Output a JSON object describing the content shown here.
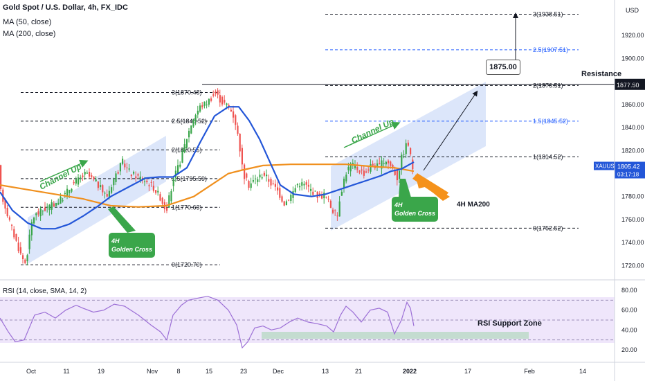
{
  "header": {
    "ticker": "Gold Spot / U.S. Dollar, 4h, FX_IDC",
    "ma50": "MA (50, close)",
    "ma200": "MA (200, close)",
    "currency": "USD"
  },
  "rsi": {
    "title": "RSI (14, close, SMA, 14, 2)",
    "zone_label": "RSI Support Zone",
    "yticks": [
      "80.00",
      "60.00",
      "40.00",
      "20.00"
    ],
    "levels": [
      70,
      50,
      30
    ]
  },
  "annotations": {
    "target_box": "1875.00",
    "resistance": "Resistance",
    "resistance_value": "1877.50",
    "golden_cross": "4H\nGolden Cross",
    "channel_up": "Channel Up",
    "ma200_label": "4H MA200",
    "price_tag": "XAUUSD",
    "price_value": "1805.42",
    "countdown": "03:17:18"
  },
  "colors": {
    "ma50": "#2356d8",
    "ma200": "#f0901e",
    "bull": "#3aa64a",
    "bear": "#ef5350",
    "channel": "#c9d9f7",
    "fib": "#131722",
    "fib_blue": "#2962ff",
    "rsi_line": "#9c6fd6",
    "rsi_band": "#efe6fb",
    "badge": "#3aa64a",
    "arrow": "#f5921b",
    "resistance": "#131722"
  },
  "chart_data": {
    "type": "candlestick",
    "x_tick_labels": [
      "Oct",
      "11",
      "19",
      "Nov",
      "8",
      "15",
      "23",
      "Dec",
      "13",
      "21",
      "2022",
      "17",
      "Feb",
      "14"
    ],
    "y_ticks": [
      "1920.00",
      "1900.00",
      "1880.00",
      "1860.00",
      "1840.00",
      "1820.00",
      "1800.00",
      "1780.00",
      "1760.00",
      "1740.00",
      "1720.00"
    ],
    "y_range": [
      1710,
      1946
    ],
    "fib_left": [
      {
        "label": "3(1870.48)",
        "value": 1870.48
      },
      {
        "label": "2.5(1845.52)",
        "value": 1845.52
      },
      {
        "label": "2(1820.55)",
        "value": 1820.55
      },
      {
        "label": "1.5(1795.59)",
        "value": 1795.59
      },
      {
        "label": "1(1770.63)",
        "value": 1770.63
      },
      {
        "label": "0(1720.70)",
        "value": 1720.7
      }
    ],
    "fib_right": [
      {
        "label": "3(1938.51)",
        "value": 1938.51
      },
      {
        "label": "2.5(1907.51)",
        "value": 1907.51
      },
      {
        "label": "2(1876.51)",
        "value": 1876.51
      },
      {
        "label": "1.5(1845.52)",
        "value": 1845.52
      },
      {
        "label": "1(1814.52)",
        "value": 1814.52
      },
      {
        "label": "0(1752.52)",
        "value": 1752.52
      }
    ],
    "resistance": 1877.5,
    "target": 1875.0,
    "last_price": 1805.42,
    "price_anchors": [
      [
        0,
        1788
      ],
      [
        14,
        1760
      ],
      [
        22,
        1745
      ],
      [
        32,
        1728
      ],
      [
        38,
        1722
      ],
      [
        48,
        1762
      ],
      [
        62,
        1768
      ],
      [
        75,
        1772
      ],
      [
        90,
        1778
      ],
      [
        105,
        1790
      ],
      [
        115,
        1795
      ],
      [
        125,
        1800
      ],
      [
        140,
        1792
      ],
      [
        155,
        1780
      ],
      [
        165,
        1795
      ],
      [
        178,
        1810
      ],
      [
        190,
        1800
      ],
      [
        205,
        1796
      ],
      [
        220,
        1790
      ],
      [
        232,
        1780
      ],
      [
        241,
        1768
      ],
      [
        252,
        1795
      ],
      [
        262,
        1812
      ],
      [
        270,
        1830
      ],
      [
        280,
        1848
      ],
      [
        290,
        1858
      ],
      [
        300,
        1862
      ],
      [
        312,
        1870
      ],
      [
        322,
        1862
      ],
      [
        332,
        1858
      ],
      [
        340,
        1848
      ],
      [
        347,
        1825
      ],
      [
        352,
        1800
      ],
      [
        360,
        1790
      ],
      [
        370,
        1795
      ],
      [
        382,
        1800
      ],
      [
        392,
        1792
      ],
      [
        402,
        1785
      ],
      [
        412,
        1774
      ],
      [
        422,
        1782
      ],
      [
        432,
        1792
      ],
      [
        442,
        1790
      ],
      [
        452,
        1785
      ],
      [
        462,
        1780
      ],
      [
        470,
        1782
      ],
      [
        480,
        1770
      ],
      [
        488,
        1762
      ],
      [
        492,
        1780
      ],
      [
        500,
        1800
      ],
      [
        508,
        1808
      ],
      [
        518,
        1804
      ],
      [
        528,
        1800
      ],
      [
        538,
        1808
      ],
      [
        548,
        1806
      ],
      [
        558,
        1812
      ],
      [
        568,
        1805
      ],
      [
        575,
        1796
      ],
      [
        582,
        1816
      ],
      [
        590,
        1828
      ],
      [
        597,
        1805
      ]
    ],
    "ma50_anchors": [
      [
        0,
        1784
      ],
      [
        18,
        1768
      ],
      [
        40,
        1757
      ],
      [
        60,
        1752
      ],
      [
        80,
        1752
      ],
      [
        100,
        1756
      ],
      [
        120,
        1763
      ],
      [
        140,
        1771
      ],
      [
        160,
        1780
      ],
      [
        185,
        1788
      ],
      [
        210,
        1796
      ],
      [
        230,
        1797
      ],
      [
        250,
        1797
      ],
      [
        270,
        1805
      ],
      [
        290,
        1828
      ],
      [
        310,
        1850
      ],
      [
        330,
        1858
      ],
      [
        345,
        1858
      ],
      [
        360,
        1846
      ],
      [
        375,
        1830
      ],
      [
        390,
        1810
      ],
      [
        405,
        1790
      ],
      [
        425,
        1782
      ],
      [
        450,
        1780
      ],
      [
        470,
        1782
      ],
      [
        490,
        1786
      ],
      [
        510,
        1790
      ],
      [
        530,
        1794
      ],
      [
        550,
        1798
      ],
      [
        565,
        1802
      ],
      [
        580,
        1804
      ],
      [
        598,
        1810
      ]
    ],
    "ma200_anchors": [
      [
        0,
        1790
      ],
      [
        40,
        1786
      ],
      [
        80,
        1782
      ],
      [
        120,
        1778
      ],
      [
        160,
        1772
      ],
      [
        200,
        1771
      ],
      [
        240,
        1772
      ],
      [
        280,
        1780
      ],
      [
        310,
        1792
      ],
      [
        330,
        1800
      ],
      [
        350,
        1803
      ],
      [
        380,
        1807
      ],
      [
        420,
        1808
      ],
      [
        460,
        1808
      ],
      [
        500,
        1808
      ],
      [
        540,
        1806
      ],
      [
        570,
        1805
      ],
      [
        598,
        1802
      ]
    ],
    "rsi_anchors": [
      [
        0,
        52
      ],
      [
        12,
        38
      ],
      [
        22,
        28
      ],
      [
        35,
        30
      ],
      [
        50,
        55
      ],
      [
        65,
        58
      ],
      [
        80,
        52
      ],
      [
        95,
        60
      ],
      [
        110,
        65
      ],
      [
        120,
        62
      ],
      [
        135,
        58
      ],
      [
        150,
        60
      ],
      [
        165,
        66
      ],
      [
        180,
        64
      ],
      [
        200,
        55
      ],
      [
        218,
        45
      ],
      [
        232,
        38
      ],
      [
        241,
        30
      ],
      [
        250,
        55
      ],
      [
        262,
        65
      ],
      [
        272,
        70
      ],
      [
        285,
        72
      ],
      [
        300,
        74
      ],
      [
        315,
        70
      ],
      [
        330,
        60
      ],
      [
        342,
        45
      ],
      [
        350,
        22
      ],
      [
        358,
        28
      ],
      [
        368,
        42
      ],
      [
        380,
        44
      ],
      [
        392,
        40
      ],
      [
        405,
        42
      ],
      [
        418,
        48
      ],
      [
        430,
        52
      ],
      [
        445,
        48
      ],
      [
        460,
        46
      ],
      [
        472,
        44
      ],
      [
        482,
        38
      ],
      [
        492,
        55
      ],
      [
        500,
        64
      ],
      [
        510,
        58
      ],
      [
        522,
        48
      ],
      [
        535,
        60
      ],
      [
        548,
        62
      ],
      [
        560,
        58
      ],
      [
        570,
        36
      ],
      [
        580,
        50
      ],
      [
        588,
        68
      ],
      [
        593,
        62
      ],
      [
        598,
        44
      ]
    ]
  }
}
